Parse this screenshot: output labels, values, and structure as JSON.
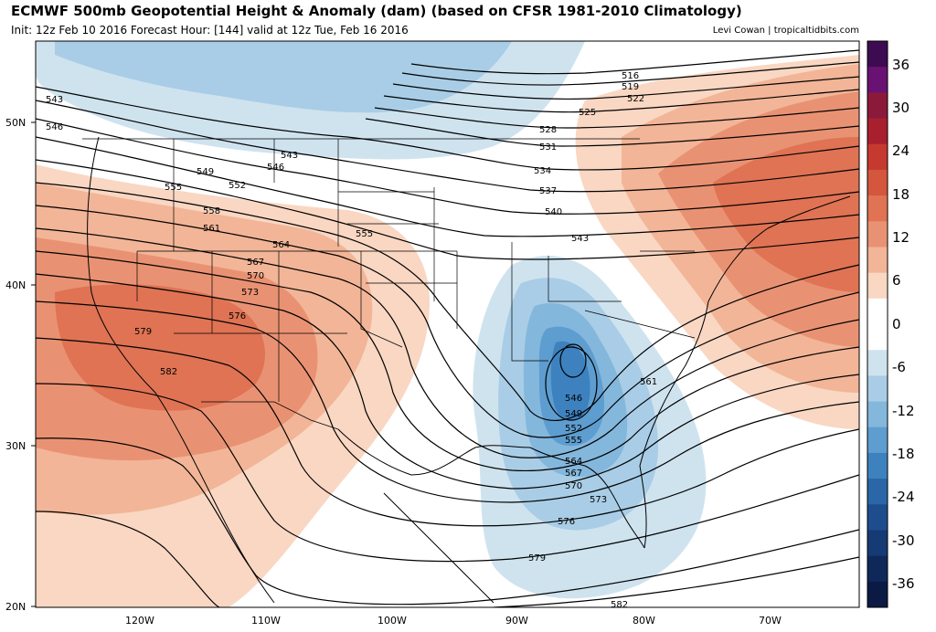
{
  "header": {
    "title": "ECMWF 500mb Geopotential Height & Anomaly (dam) (based on CFSR 1981-2010 Climatology)",
    "subtitle": "Init: 12z Feb 10 2016   Forecast Hour: [144]   valid at 12z Tue, Feb 16 2016",
    "credit": "Levi Cowan | tropicaltidbits.com"
  },
  "axes": {
    "lat_labels": [
      "50N",
      "40N",
      "30N",
      "20N"
    ],
    "lon_labels": [
      "120W",
      "110W",
      "100W",
      "90W",
      "80W",
      "70W"
    ]
  },
  "colorbar": {
    "labels": [
      "36",
      "30",
      "24",
      "18",
      "12",
      "6",
      "0",
      "-6",
      "-12",
      "-18",
      "-24",
      "-30",
      "-36"
    ],
    "colors": [
      "#3d0b52",
      "#6a1273",
      "#8b1a3a",
      "#a8202e",
      "#c6392f",
      "#d4563c",
      "#df7354",
      "#e99273",
      "#f2b597",
      "#f9d7c3",
      "#ffffff",
      "#ffffff",
      "#cfe3ef",
      "#a9cde6",
      "#84b7dc",
      "#5e9dcf",
      "#3d82bf",
      "#2a66a8",
      "#1e4d8e",
      "#163a74",
      "#0f285a",
      "#0b1a44"
    ]
  },
  "contour_labels": [
    "516",
    "519",
    "522",
    "525",
    "528",
    "531",
    "534",
    "537",
    "540",
    "543",
    "543",
    "543",
    "546",
    "546",
    "549",
    "552",
    "555",
    "555",
    "558",
    "561",
    "564",
    "567",
    "570",
    "573",
    "576",
    "579",
    "582",
    "546",
    "549",
    "552",
    "555",
    "561",
    "564",
    "567",
    "570",
    "573",
    "576",
    "579",
    "582"
  ],
  "anomaly_colors": {
    "strong_pos": "#df7354",
    "mid_pos": "#e99273",
    "weak_pos": "#f2b597",
    "faint_pos": "#f9d7c3",
    "faint_neg": "#cfe3ef",
    "weak_neg": "#a9cde6",
    "mid_neg": "#84b7dc",
    "strong_neg": "#5e9dcf",
    "deep_neg": "#3d82bf"
  }
}
